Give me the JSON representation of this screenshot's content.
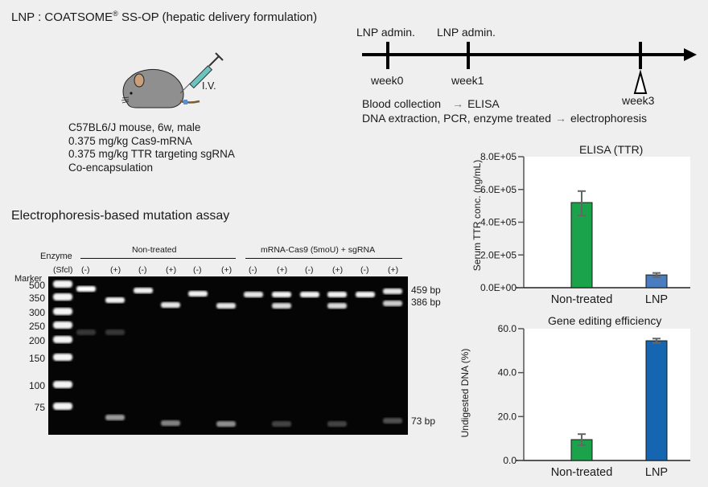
{
  "header": {
    "title_prefix": "LNP : COATSOME",
    "title_reg": "®",
    "title_suffix": " SS-OP (hepatic delivery formulation)"
  },
  "injection": {
    "route_label": "I.V.",
    "conditions": [
      "C57BL6/J mouse, 6w, male",
      "0.375 mg/kg Cas9-mRNA",
      "0.375 mg/kg TTR targeting sgRNA",
      "Co-encapsulation"
    ]
  },
  "timeline": {
    "admin_labels": [
      "LNP admin.",
      "LNP admin."
    ],
    "weeks": [
      "week0",
      "week1",
      "week3"
    ],
    "steps": [
      {
        "text": "Blood collection",
        "arrow": "→",
        "result": "ELISA"
      },
      {
        "text": "DNA extraction, PCR, enzyme treated",
        "arrow": "→",
        "result": "electrophoresis"
      }
    ]
  },
  "gel": {
    "section_title": "Electrophoresis-based mutation assay",
    "enzyme_label": "Enzyme",
    "marker_lane_label": "(Sfcl)",
    "marker_label": "Marker",
    "groups": [
      "Non-treated",
      "mRNA-Cas9 (5moU) + sgRNA"
    ],
    "lanes": [
      "(-)",
      "(+)",
      "(-)",
      "(+)",
      "(-)",
      "(+)",
      "(-)",
      "(+)",
      "(-)",
      "(+)",
      "(-)",
      "(+)"
    ],
    "marker_sizes": [
      "500",
      "350",
      "300",
      "250",
      "200",
      "150",
      "100",
      "75"
    ],
    "band_labels": [
      "459 bp",
      "386 bp",
      "73 bp"
    ]
  },
  "chart_data": [
    {
      "type": "bar",
      "title": "ELISA (TTR)",
      "xlabel": "",
      "ylabel": "Serum TTR conc. (ng/mL)",
      "categories": [
        "Non-treated",
        "LNP"
      ],
      "values": [
        520000,
        78000
      ],
      "error_low": [
        440000,
        65000
      ],
      "error_high": [
        590000,
        90000
      ],
      "colors": [
        "#1aa34a",
        "#4a7cc0"
      ],
      "ylim": [
        0,
        800000
      ],
      "yticks": [
        0,
        200000,
        400000,
        600000,
        800000
      ],
      "ytick_labels": [
        "0.0E+00",
        "2.0E+05",
        "4.0E+05",
        "6.0E+05",
        "8.0E+05"
      ],
      "grid": false
    },
    {
      "type": "bar",
      "title": "Gene editing efficiency",
      "xlabel": "",
      "ylabel": "Undigested DNA (%)",
      "categories": [
        "Non-treated",
        "LNP"
      ],
      "values": [
        9.5,
        54.5
      ],
      "error_low": [
        7.0,
        53.5
      ],
      "error_high": [
        12.0,
        55.5
      ],
      "colors": [
        "#1aa34a",
        "#1565b0"
      ],
      "ylim": [
        0,
        60
      ],
      "yticks": [
        0,
        20,
        40,
        60
      ],
      "ytick_labels": [
        "0.0",
        "20.0",
        "40.0",
        "60.0"
      ],
      "grid": false
    }
  ]
}
